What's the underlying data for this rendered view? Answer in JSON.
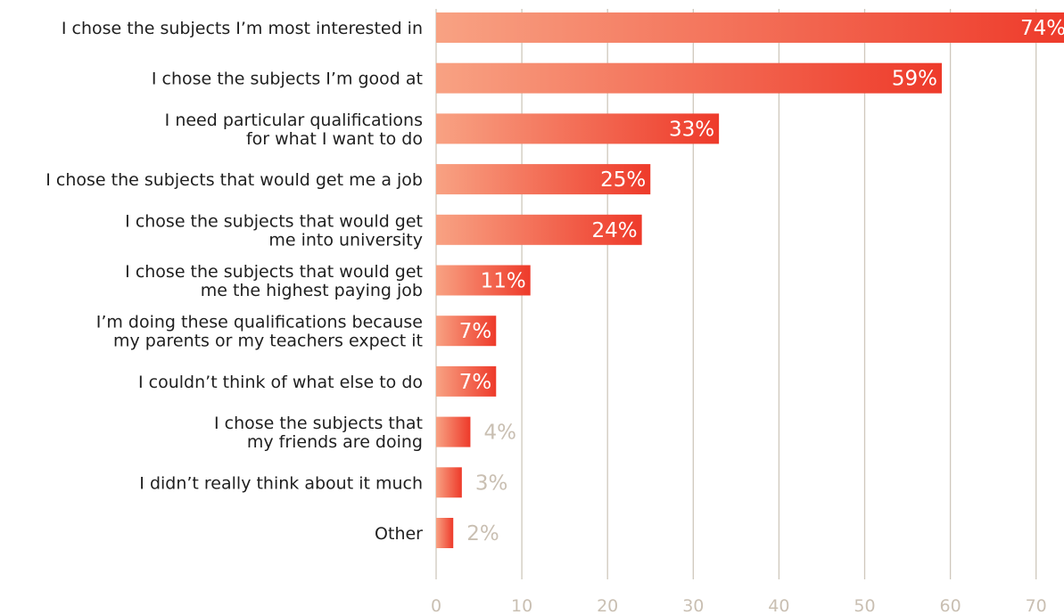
{
  "chart_data": {
    "type": "bar",
    "orientation": "horizontal",
    "categories": [
      [
        "I chose the subjects I’m most interested in"
      ],
      [
        "I chose the subjects I’m good at"
      ],
      [
        "I need particular qualifications",
        "for what I want to do"
      ],
      [
        "I chose the subjects that would get me a job"
      ],
      [
        "I chose the subjects that would get",
        "me into university"
      ],
      [
        "I chose the subjects that would get",
        "me the highest paying job"
      ],
      [
        "I’m doing these qualifications because",
        "my parents or my teachers expect it"
      ],
      [
        "I couldn’t think of what else to do"
      ],
      [
        "I chose the subjects that",
        "my friends are doing"
      ],
      [
        "I didn’t really think about it much"
      ],
      [
        "Other"
      ]
    ],
    "values": [
      74,
      59,
      33,
      25,
      24,
      11,
      7,
      7,
      4,
      3,
      2
    ],
    "value_labels": [
      "74%",
      "59%",
      "33%",
      "25%",
      "24%",
      "11%",
      "7%",
      "7%",
      "4%",
      "3%",
      "2%"
    ],
    "xlim": [
      0,
      74
    ],
    "xticks": [
      0,
      10,
      20,
      30,
      40,
      50,
      60,
      70
    ],
    "xtick_labels": [
      "0",
      "10",
      "20",
      "30",
      "40",
      "50",
      "60",
      "70"
    ],
    "grid": true,
    "legend": "none",
    "colors": {
      "bar_start": "#f8a283",
      "bar_end": "#ee3a2a",
      "label_inside": "#ffffff",
      "label_outside": "#c9bfb2",
      "category_text": "#1f1f1f",
      "grid": "#cfc8bc",
      "tick_text": "#c9bfb2"
    }
  }
}
